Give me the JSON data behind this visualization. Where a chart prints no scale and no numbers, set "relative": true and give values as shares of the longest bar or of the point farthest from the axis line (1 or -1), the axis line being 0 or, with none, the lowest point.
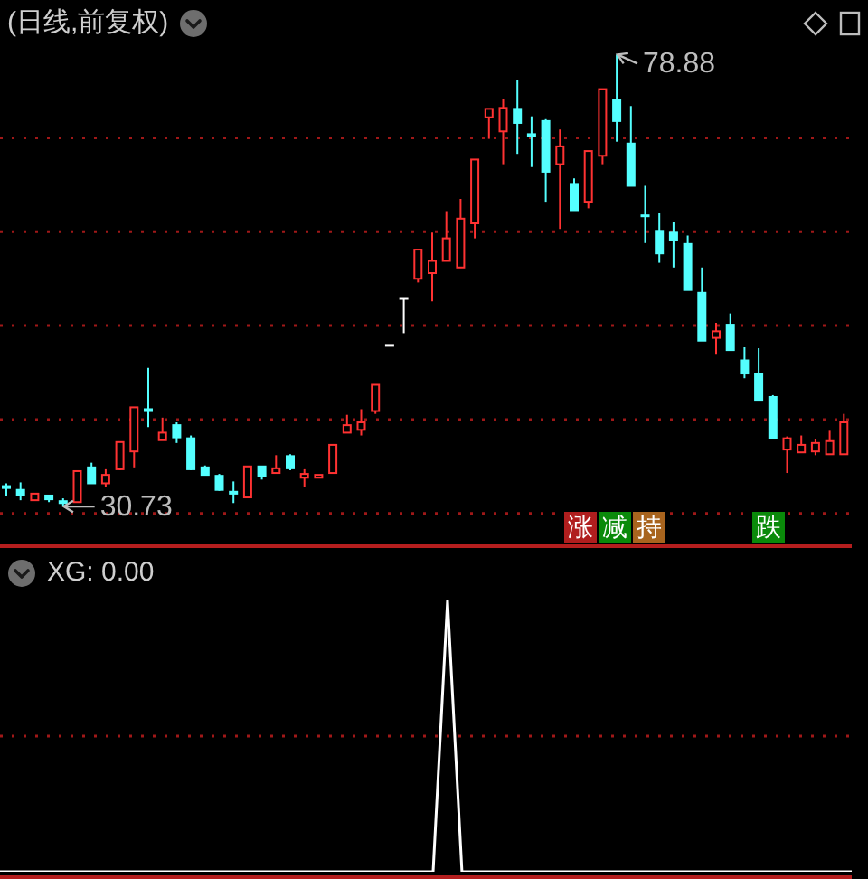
{
  "chart_data": [
    {
      "type": "candlestick",
      "title": "(日线,前复权)",
      "categories": [
        null,
        null,
        null,
        null,
        null,
        null,
        null,
        null,
        null,
        null,
        null,
        null,
        null,
        null,
        null,
        null,
        null,
        null,
        null,
        null,
        null,
        null,
        null,
        null,
        null,
        null,
        null,
        null,
        null,
        null,
        null,
        null,
        null,
        null,
        null,
        null,
        null,
        null,
        null,
        null,
        null,
        null,
        null,
        null,
        null,
        null,
        null,
        null,
        null,
        null,
        null,
        null,
        null,
        null,
        null,
        null,
        null,
        null,
        null,
        null
      ],
      "ohlc": [
        [
          32.9,
          33.2,
          31.9,
          32.7
        ],
        [
          32.5,
          33.3,
          31.4,
          31.9
        ],
        [
          31.4,
          32.1,
          31.4,
          32.1
        ],
        [
          31.9,
          31.9,
          31.2,
          31.5
        ],
        [
          31.3,
          31.6,
          30.73,
          31.1
        ],
        [
          31.2,
          34.5,
          31.2,
          34.5
        ],
        [
          34.9,
          35.4,
          33.2,
          33.2
        ],
        [
          33.2,
          34.7,
          32.8,
          34.1
        ],
        [
          34.7,
          37.6,
          34.6,
          37.6
        ],
        [
          36.6,
          41.3,
          34.9,
          41.3
        ],
        [
          41.1,
          45.5,
          39.2,
          40.9
        ],
        [
          37.8,
          40.2,
          37.8,
          38.6
        ],
        [
          39.4,
          39.7,
          37.5,
          38.1
        ],
        [
          38.0,
          38.3,
          34.6,
          34.7
        ],
        [
          34.9,
          35.1,
          34.1,
          34.1
        ],
        [
          34.0,
          34.2,
          32.4,
          32.5
        ],
        [
          32.3,
          33.4,
          31.1,
          32.1
        ],
        [
          31.7,
          35.0,
          31.7,
          35.0
        ],
        [
          35.0,
          35.0,
          33.6,
          34.0
        ],
        [
          34.3,
          36.2,
          34.3,
          34.8
        ],
        [
          36.1,
          36.3,
          34.6,
          34.8
        ],
        [
          33.8,
          34.7,
          32.8,
          34.2
        ],
        [
          33.8,
          34.1,
          33.8,
          34.1
        ],
        [
          34.3,
          37.3,
          34.3,
          37.3
        ],
        [
          38.6,
          40.5,
          38.6,
          39.4
        ],
        [
          38.9,
          41.1,
          38.3,
          39.7
        ],
        [
          40.9,
          43.7,
          40.6,
          43.7
        ],
        [
          47.9,
          47.9,
          47.9,
          47.9
        ],
        [
          52.9,
          52.9,
          49.2,
          52.9
        ],
        [
          55.0,
          58.1,
          54.6,
          58.1
        ],
        [
          55.6,
          59.9,
          52.6,
          56.9
        ],
        [
          56.9,
          62.2,
          56.9,
          59.3
        ],
        [
          56.2,
          63.5,
          56.2,
          61.4
        ],
        [
          60.9,
          67.7,
          59.3,
          67.7
        ],
        [
          72.2,
          73.1,
          69.9,
          73.1
        ],
        [
          70.7,
          74.1,
          67.2,
          73.2
        ],
        [
          73.1,
          76.2,
          68.3,
          71.6
        ],
        [
          70.4,
          72.3,
          66.9,
          70.2
        ],
        [
          71.8,
          72.0,
          63.2,
          66.4
        ],
        [
          67.2,
          70.9,
          60.3,
          69.1
        ],
        [
          65.1,
          65.7,
          62.3,
          62.3
        ],
        [
          63.2,
          68.6,
          62.5,
          68.6
        ],
        [
          68.1,
          75.2,
          67.2,
          75.2
        ],
        [
          74.1,
          78.88,
          69.6,
          71.8
        ],
        [
          69.4,
          73.4,
          64.9,
          64.9
        ],
        [
          61.7,
          64.9,
          58.8,
          61.6
        ],
        [
          60.1,
          62.0,
          56.7,
          57.7
        ],
        [
          60.0,
          61.0,
          56.2,
          59.1
        ],
        [
          58.7,
          59.6,
          53.8,
          53.8
        ],
        [
          53.5,
          56.2,
          48.4,
          48.4
        ],
        [
          48.7,
          50.3,
          46.9,
          49.4
        ],
        [
          50.1,
          51.3,
          47.4,
          47.4
        ],
        [
          46.3,
          47.7,
          44.4,
          44.9
        ],
        [
          44.9,
          47.6,
          42.1,
          42.1
        ],
        [
          42.4,
          42.6,
          38.0,
          38.0
        ],
        [
          36.8,
          38.2,
          34.3,
          38.0
        ],
        [
          36.5,
          38.3,
          36.5,
          37.3
        ],
        [
          36.6,
          37.9,
          36.2,
          37.5
        ],
        [
          36.3,
          38.8,
          36.3,
          37.7
        ],
        [
          36.3,
          40.6,
          36.3,
          39.7
        ]
      ],
      "colors": [
        "#54ffff",
        "#54ffff",
        "#ff3232",
        "#54ffff",
        "#54ffff",
        "#ff3232",
        "#54ffff",
        "#ff3232",
        "#ff3232",
        "#ff3232",
        "#54ffff",
        "#ff3232",
        "#54ffff",
        "#54ffff",
        "#54ffff",
        "#54ffff",
        "#54ffff",
        "#ff3232",
        "#54ffff",
        "#ff3232",
        "#54ffff",
        "#ff3232",
        "#ff3232",
        "#ff3232",
        "#ff3232",
        "#ff3232",
        "#ff3232",
        "#ffffff",
        "#ffffff",
        "#ff3232",
        "#ff3232",
        "#ff3232",
        "#ff3232",
        "#ff3232",
        "#ff3232",
        "#ff3232",
        "#54ffff",
        "#54ffff",
        "#54ffff",
        "#ff3232",
        "#54ffff",
        "#ff3232",
        "#ff3232",
        "#54ffff",
        "#54ffff",
        "#54ffff",
        "#54ffff",
        "#54ffff",
        "#54ffff",
        "#54ffff",
        "#ff3232",
        "#54ffff",
        "#54ffff",
        "#54ffff",
        "#54ffff",
        "#ff3232",
        "#ff3232",
        "#ff3232",
        "#ff3232",
        "#ff3232"
      ],
      "ylim": [
        26.5,
        84.7
      ],
      "yticks": [
        {
          "value": 30,
          "label": null
        },
        {
          "value": 40,
          "label": null
        },
        {
          "value": 50,
          "label": null
        },
        {
          "value": 60,
          "label": null
        },
        {
          "value": 70,
          "label": null
        }
      ],
      "grid": "y",
      "tick_labels": false,
      "annotations": [
        "78.88",
        "30.73",
        "涨",
        "减",
        "持",
        "跌"
      ]
    },
    {
      "type": "line",
      "title": "XG: 0.00",
      "categories": [
        null,
        null,
        null,
        null,
        null,
        null,
        null,
        null,
        null,
        null,
        null,
        null,
        null,
        null,
        null,
        null,
        null,
        null,
        null,
        null,
        null,
        null,
        null,
        null,
        null,
        null,
        null,
        null,
        null,
        null,
        null,
        null,
        null,
        null,
        null,
        null,
        null,
        null,
        null,
        null,
        null,
        null,
        null,
        null,
        null,
        null,
        null,
        null,
        null,
        null,
        null,
        null,
        null,
        null,
        null,
        null,
        null,
        null,
        null,
        null
      ],
      "values": [
        0,
        0,
        0,
        0,
        0,
        0,
        0,
        0,
        0,
        0,
        0,
        0,
        0,
        0,
        0,
        0,
        0,
        0,
        0,
        0,
        0,
        0,
        0,
        0,
        0,
        0,
        0,
        0,
        0,
        0,
        0,
        1,
        0,
        0,
        0,
        0,
        0,
        0,
        0,
        0,
        0,
        0,
        0,
        0,
        0,
        0,
        0,
        0,
        0,
        0,
        0,
        0,
        0,
        0,
        0,
        0,
        0,
        0,
        0,
        0
      ],
      "color": "#ffffff",
      "relative": true,
      "tick_labels": false,
      "ref_lines": [
        {
          "axis": "y",
          "value": 0.5,
          "color": "#a01818",
          "line_style": "dotted"
        }
      ]
    }
  ]
}
